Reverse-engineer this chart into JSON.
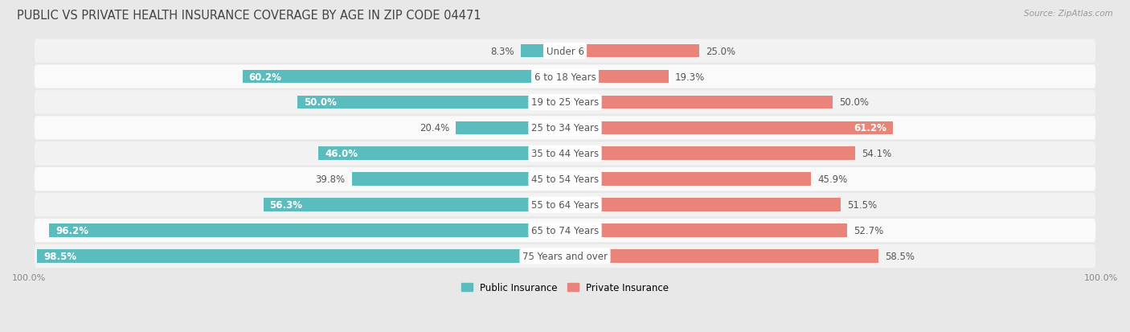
{
  "title": "PUBLIC VS PRIVATE HEALTH INSURANCE COVERAGE BY AGE IN ZIP CODE 04471",
  "source": "Source: ZipAtlas.com",
  "categories": [
    "Under 6",
    "6 to 18 Years",
    "19 to 25 Years",
    "25 to 34 Years",
    "35 to 44 Years",
    "45 to 54 Years",
    "55 to 64 Years",
    "65 to 74 Years",
    "75 Years and over"
  ],
  "public_values": [
    8.3,
    60.2,
    50.0,
    20.4,
    46.0,
    39.8,
    56.3,
    96.2,
    98.5
  ],
  "private_values": [
    25.0,
    19.3,
    50.0,
    61.2,
    54.1,
    45.9,
    51.5,
    52.7,
    58.5
  ],
  "public_color": "#5bbcbd",
  "private_color": "#e8847a",
  "bg_color": "#e8e8e8",
  "row_colors": [
    "#f2f2f2",
    "#fafafa"
  ],
  "bar_height": 0.52,
  "max_value": 100.0,
  "title_fontsize": 10.5,
  "label_fontsize": 8.5,
  "category_fontsize": 8.5,
  "legend_fontsize": 8.5,
  "axis_label_fontsize": 8.0,
  "public_threshold": 45,
  "private_threshold": 60
}
